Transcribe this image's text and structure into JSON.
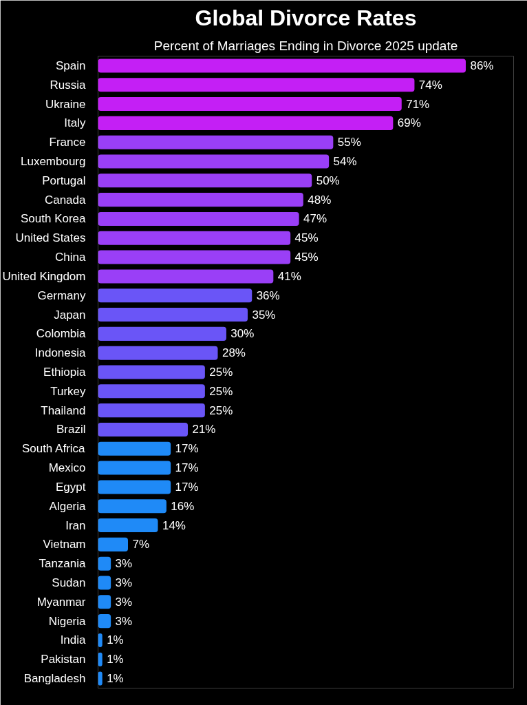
{
  "chart_data": {
    "type": "bar",
    "orientation": "horizontal",
    "title": "Global Divorce Rates",
    "subtitle": "Percent of Marriages Ending in Divorce 2025 update",
    "categories": [
      "Spain",
      "Russia",
      "Ukraine",
      "Italy",
      "France",
      "Luxembourg",
      "Portugal",
      "Canada",
      "South Korea",
      "United States",
      "China",
      "United Kingdom",
      "Germany",
      "Japan",
      "Colombia",
      "Indonesia",
      "Ethiopia",
      "Turkey",
      "Thailand",
      "Brazil",
      "South Africa",
      "Mexico",
      "Egypt",
      "Algeria",
      "Iran",
      "Vietnam",
      "Tanzania",
      "Sudan",
      "Myanmar",
      "Nigeria",
      "India",
      "Pakistan",
      "Bangladesh"
    ],
    "values": [
      86,
      74,
      71,
      69,
      55,
      54,
      50,
      48,
      47,
      45,
      45,
      41,
      36,
      35,
      30,
      28,
      25,
      25,
      25,
      21,
      17,
      17,
      17,
      16,
      14,
      7,
      3,
      3,
      3,
      3,
      1,
      1,
      1
    ],
    "value_labels": [
      "86%",
      "74%",
      "71%",
      "69%",
      "55%",
      "54%",
      "50%",
      "48%",
      "47%",
      "45%",
      "45%",
      "41%",
      "36%",
      "35%",
      "30%",
      "28%",
      "25%",
      "25%",
      "25%",
      "21%",
      "17%",
      "17%",
      "17%",
      "16%",
      "14%",
      "7%",
      "3%",
      "3%",
      "3%",
      "3%",
      "1%",
      "1%",
      "1%"
    ],
    "colors": [
      "#c41ff5",
      "#c41ff5",
      "#c41ff5",
      "#c41ff5",
      "#9a3ff7",
      "#9a3ff7",
      "#9a3ff7",
      "#9a3ff7",
      "#9a3ff7",
      "#9a3ff7",
      "#9a3ff7",
      "#9a3ff7",
      "#6a55f7",
      "#6a55f7",
      "#6a55f7",
      "#6a55f7",
      "#6a55f7",
      "#6a55f7",
      "#6a55f7",
      "#6a55f7",
      "#1f8af7",
      "#1f8af7",
      "#1f8af7",
      "#1f8af7",
      "#1f8af7",
      "#1f8af7",
      "#1f8af7",
      "#1f8af7",
      "#1f8af7",
      "#1f8af7",
      "#1f8af7",
      "#1f8af7",
      "#1f8af7"
    ],
    "grid": false
  }
}
